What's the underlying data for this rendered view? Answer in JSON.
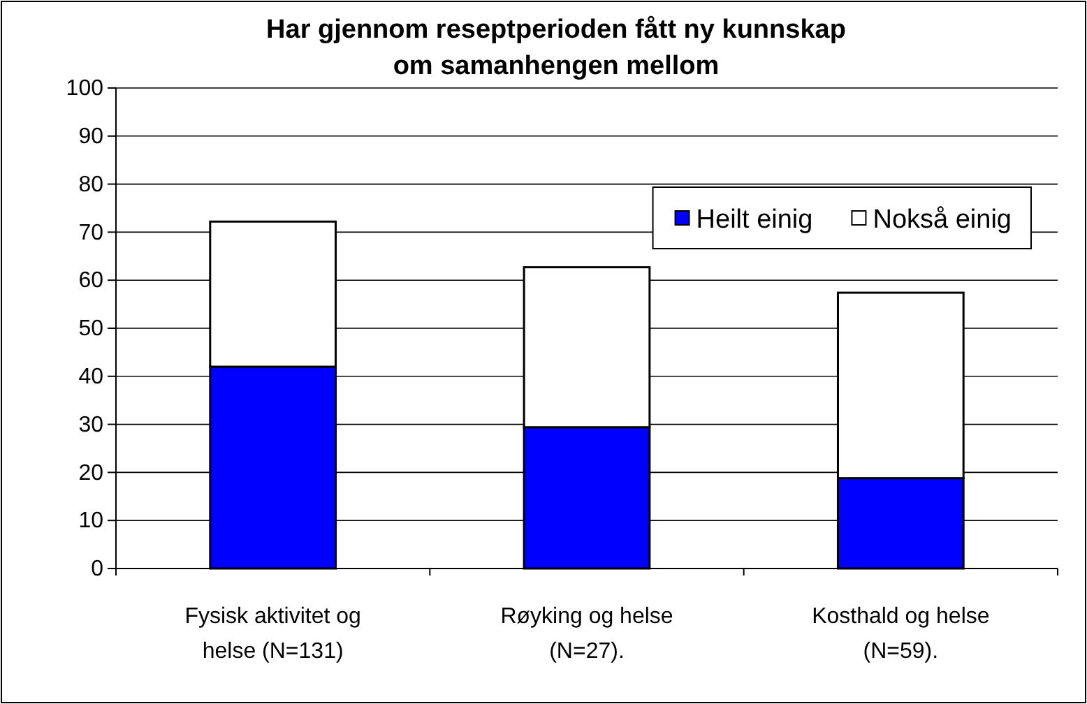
{
  "chart_data": {
    "type": "bar",
    "title": "Har gjennom reseptperioden fått ny kunnskap om samanhengen mellom",
    "categories": [
      "Fysisk aktivitet og helse (N=131)",
      "Røyking og helse (N=27).",
      "Kosthald og helse (N=59)."
    ],
    "series": [
      {
        "name": "Heilt einig",
        "color": "#0000ff",
        "values": [
          42,
          29.4,
          18.8
        ]
      },
      {
        "name": "Nokså einig",
        "color": "#ffffff",
        "values": [
          30.2,
          33.3,
          38.6
        ]
      }
    ],
    "stacked": true,
    "ylim": [
      0,
      100
    ],
    "yticks": [
      0,
      10,
      20,
      30,
      40,
      50,
      60,
      70,
      80,
      90,
      100
    ],
    "grid": "y",
    "legend": "top right"
  }
}
